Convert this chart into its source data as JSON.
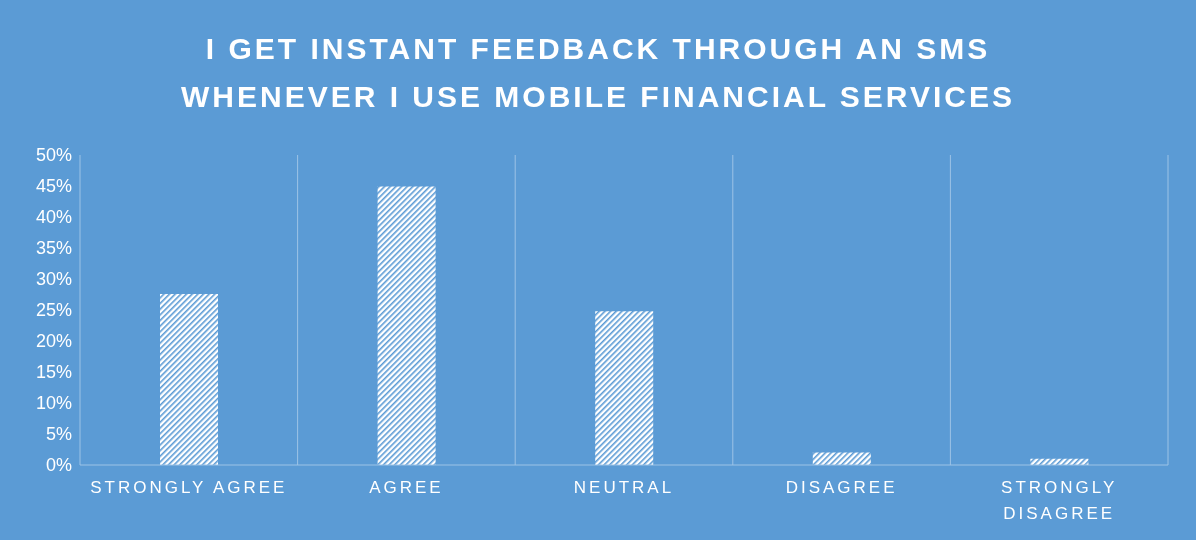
{
  "chart_data": {
    "type": "bar",
    "title": "I GET INSTANT FEEDBACK THROUGH AN SMS WHENEVER I USE MOBILE FINANCIAL SERVICES",
    "categories": [
      "STRONGLY AGREE",
      "AGREE",
      "NEUTRAL",
      "DISAGREE",
      "STRONGLY DISAGREE"
    ],
    "values": [
      27.6,
      44.9,
      24.8,
      2.0,
      1.0
    ],
    "color": "#ffffff",
    "ylim": [
      0,
      50
    ],
    "yticks": [
      {
        "value": 0,
        "label": "0%"
      },
      {
        "value": 5,
        "label": "5%"
      },
      {
        "value": 10,
        "label": "10%"
      },
      {
        "value": 15,
        "label": "15%"
      },
      {
        "value": 20,
        "label": "20%"
      },
      {
        "value": 25,
        "label": "25%"
      },
      {
        "value": 30,
        "label": "30%"
      },
      {
        "value": 35,
        "label": "35%"
      },
      {
        "value": 40,
        "label": "40%"
      },
      {
        "value": 45,
        "label": "45%"
      },
      {
        "value": 50,
        "label": "50%"
      }
    ],
    "grid": "x",
    "legend": false
  }
}
